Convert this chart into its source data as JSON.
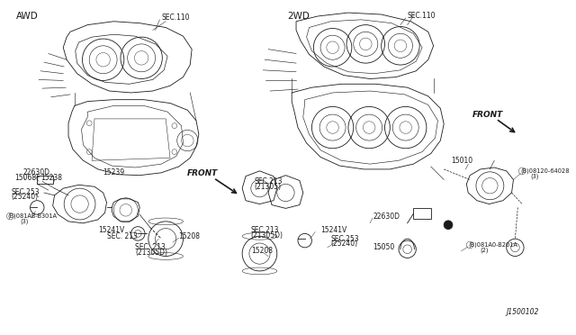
{
  "bg_color": "#ffffff",
  "fig_width": 6.4,
  "fig_height": 3.72,
  "dpi": 100,
  "diagram_id": "J1500102",
  "left_label": "AWD",
  "right_label": "2WD",
  "line_color": "#1a1a1a",
  "text_color": "#1a1a1a",
  "label_fontsize": 5.5,
  "small_fontsize": 4.8,
  "header_fontsize": 7.5
}
